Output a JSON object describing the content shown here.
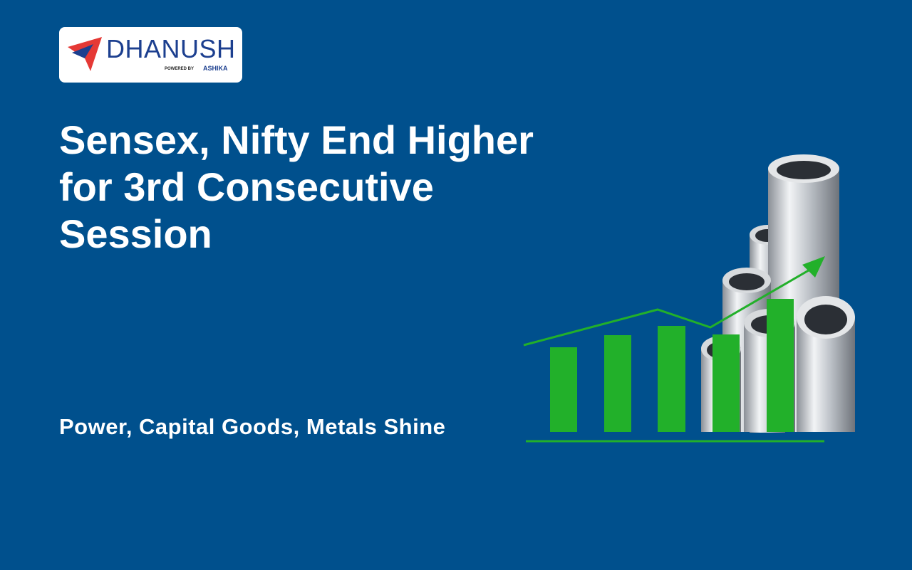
{
  "logo": {
    "brand": "DHANUSH",
    "powered_by": "POWERED BY",
    "partner": "ASHIKA"
  },
  "title_lines": [
    "Sensex, Nifty End Higher",
    "for 3rd Consecutive",
    "Session"
  ],
  "subtitle": "Power, Capital Goods, Metals Shine"
}
